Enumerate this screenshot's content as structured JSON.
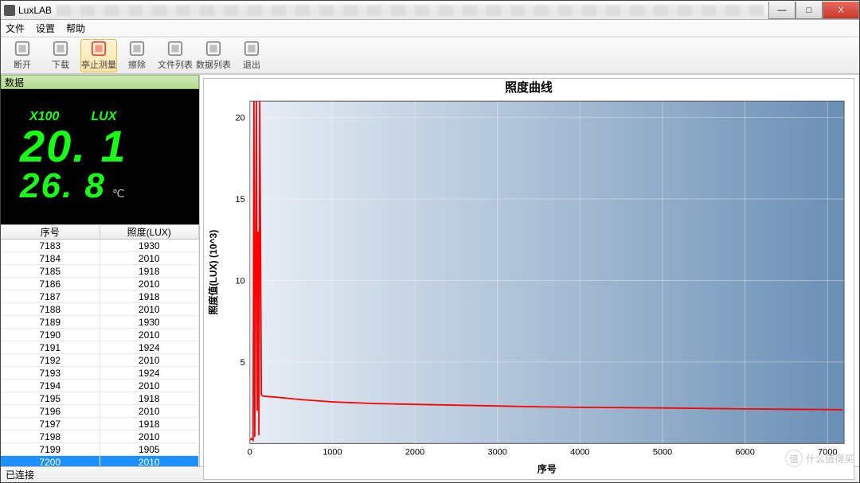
{
  "window": {
    "title": "LuxLAB",
    "buttons": {
      "min": "—",
      "max": "□",
      "close": "X"
    }
  },
  "menu": {
    "items": [
      "文件",
      "设置",
      "帮助"
    ]
  },
  "toolbar": {
    "items": [
      {
        "name": "disconnect",
        "label": "断开",
        "color": "#888"
      },
      {
        "name": "download",
        "label": "下载",
        "color": "#888"
      },
      {
        "name": "stop-measure",
        "label": "亭止测量",
        "color": "#d44",
        "active": true
      },
      {
        "name": "erase",
        "label": "擦除",
        "color": "#888"
      },
      {
        "name": "file-list",
        "label": "文件列表",
        "color": "#888"
      },
      {
        "name": "data-list",
        "label": "数据列表",
        "color": "#888"
      },
      {
        "name": "exit",
        "label": "退出",
        "color": "#888"
      }
    ]
  },
  "left": {
    "header": "数据",
    "lcd": {
      "scale": "X100",
      "unit": "LUX",
      "value": "20. 1",
      "temp": "26. 8",
      "temp_unit": "℃"
    },
    "table": {
      "columns": [
        "序号",
        "照度(LUX)"
      ],
      "rows": [
        [
          "7183",
          "1930"
        ],
        [
          "7184",
          "2010"
        ],
        [
          "7185",
          "1918"
        ],
        [
          "7186",
          "2010"
        ],
        [
          "7187",
          "1918"
        ],
        [
          "7188",
          "2010"
        ],
        [
          "7189",
          "1930"
        ],
        [
          "7190",
          "2010"
        ],
        [
          "7191",
          "1924"
        ],
        [
          "7192",
          "2010"
        ],
        [
          "7193",
          "1924"
        ],
        [
          "7194",
          "2010"
        ],
        [
          "7195",
          "1918"
        ],
        [
          "7196",
          "2010"
        ],
        [
          "7197",
          "1918"
        ],
        [
          "7198",
          "2010"
        ],
        [
          "7199",
          "1905"
        ],
        [
          "7200",
          "2010"
        ]
      ],
      "selected_index": 17
    }
  },
  "chart": {
    "title": "照度曲线",
    "xlabel": "序号",
    "ylabel": "照度值(LUX) (10^3)",
    "xlim": [
      0,
      7200
    ],
    "ylim": [
      0,
      21
    ],
    "xticks": [
      0,
      1000,
      2000,
      3000,
      4000,
      5000,
      6000,
      7000
    ],
    "yticks": [
      5,
      10,
      15,
      20
    ],
    "plot_bg_from": "#e8eef5",
    "plot_bg_to": "#6a8fb5",
    "grid_color": "#ffffff",
    "grid_opacity": 0.35,
    "line_color": "#ff0000",
    "line_width": 1.8,
    "title_fontsize": 15,
    "label_fontsize": 12,
    "tick_fontsize": 11,
    "series": [
      [
        0,
        0.2
      ],
      [
        20,
        0.3
      ],
      [
        40,
        0.2
      ],
      [
        50,
        21
      ],
      [
        60,
        0.4
      ],
      [
        80,
        21
      ],
      [
        90,
        2
      ],
      [
        100,
        13
      ],
      [
        110,
        0.5
      ],
      [
        120,
        21
      ],
      [
        140,
        3
      ],
      [
        160,
        2.9
      ],
      [
        300,
        2.85
      ],
      [
        600,
        2.7
      ],
      [
        1000,
        2.55
      ],
      [
        1500,
        2.45
      ],
      [
        2000,
        2.4
      ],
      [
        2500,
        2.35
      ],
      [
        3000,
        2.3
      ],
      [
        3500,
        2.25
      ],
      [
        4000,
        2.22
      ],
      [
        4500,
        2.2
      ],
      [
        5000,
        2.18
      ],
      [
        5500,
        2.15
      ],
      [
        6000,
        2.12
      ],
      [
        6500,
        2.1
      ],
      [
        7000,
        2.08
      ],
      [
        7180,
        2.07
      ]
    ]
  },
  "status": {
    "text": "已连接"
  },
  "watermark": {
    "icon": "值",
    "text": "什么值得买"
  }
}
